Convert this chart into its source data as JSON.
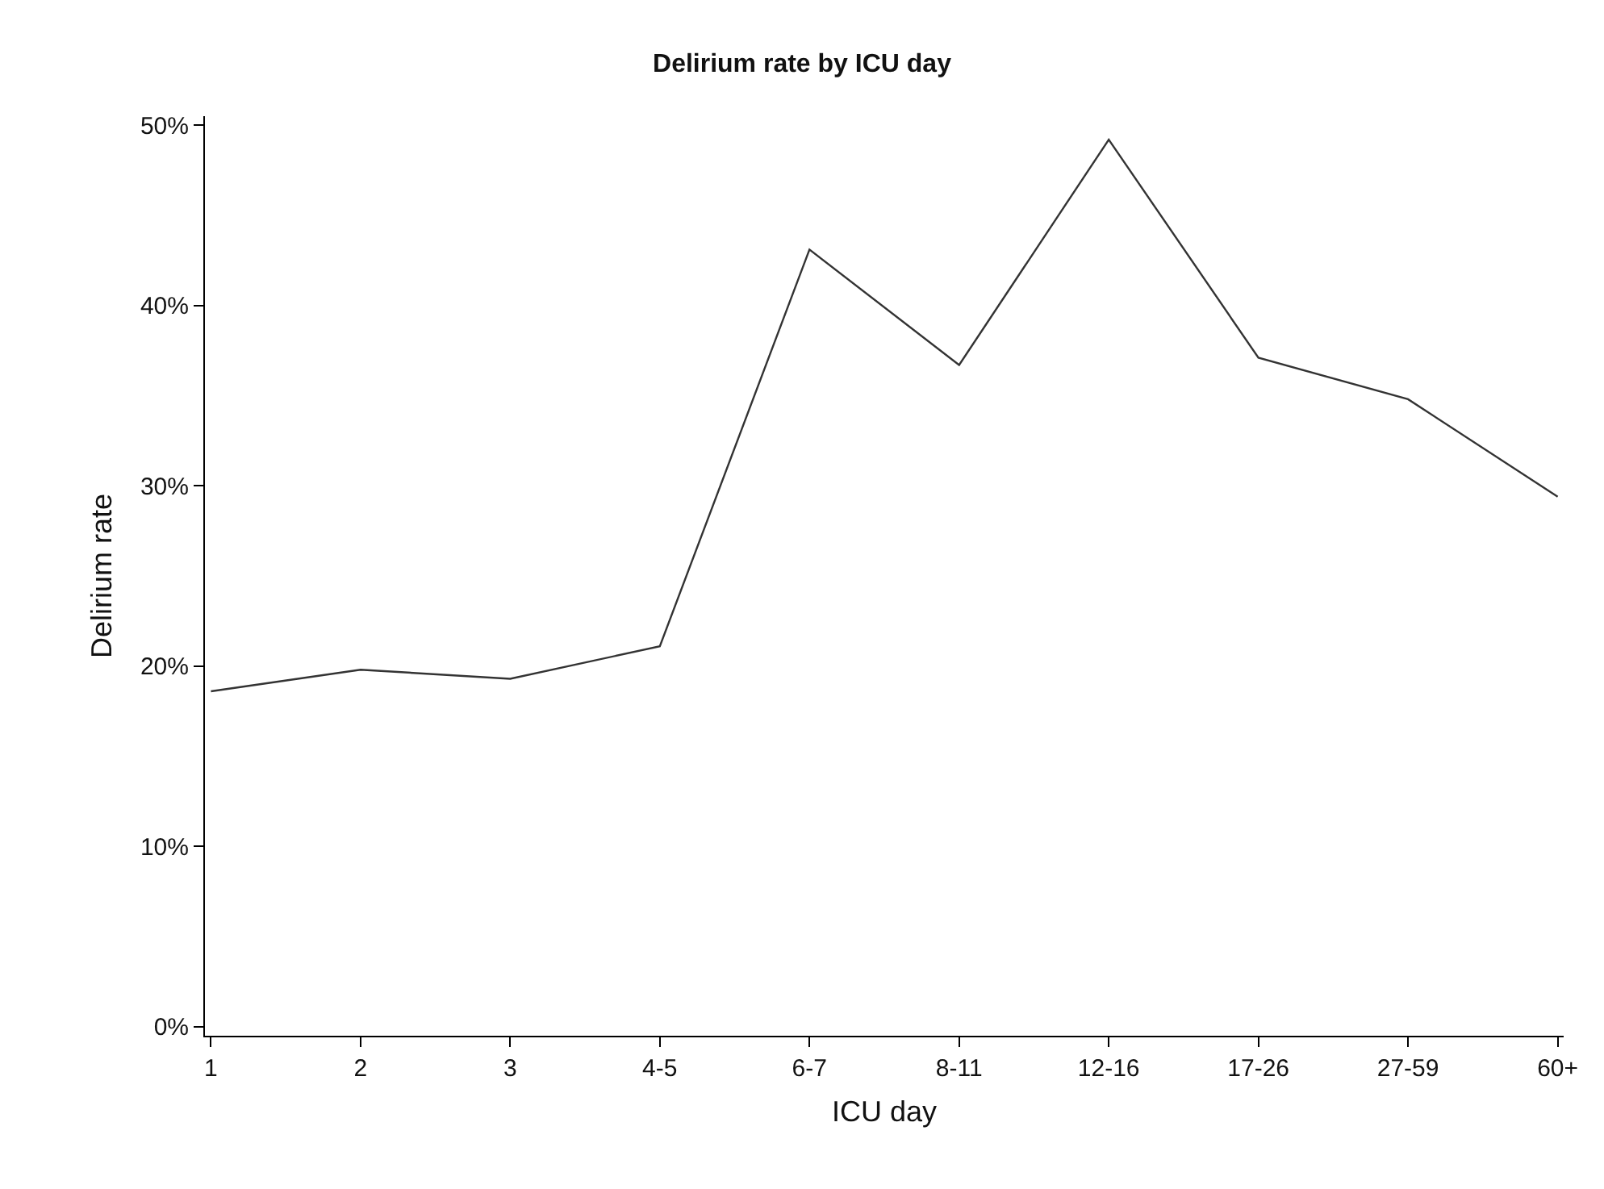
{
  "chart_data": {
    "type": "line",
    "title": "Delirium rate by ICU day",
    "xlabel": "ICU day",
    "ylabel": "Delirium rate",
    "categories": [
      "1",
      "2",
      "3",
      "4-5",
      "6-7",
      "8-11",
      "12-16",
      "17-26",
      "27-59",
      "60+"
    ],
    "series": [
      {
        "color": "#333333",
        "values": [
          18.6,
          19.8,
          19.3,
          21.1,
          43.1,
          36.7,
          49.2,
          37.1,
          34.8,
          29.4
        ]
      }
    ],
    "ylim": [
      -0.5,
      50.5
    ],
    "yticks": [
      {
        "value": 0,
        "label": "0%"
      },
      {
        "value": 10,
        "label": "10%"
      },
      {
        "value": 20,
        "label": "20%"
      },
      {
        "value": 30,
        "label": "30%"
      },
      {
        "value": 40,
        "label": "40%"
      },
      {
        "value": 50,
        "label": "50%"
      }
    ],
    "line_style": "solid"
  }
}
